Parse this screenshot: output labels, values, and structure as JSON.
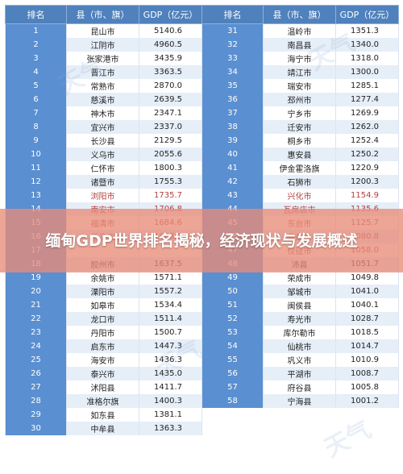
{
  "table": {
    "headers": {
      "rank": "排名",
      "county": "县（市、旗）",
      "gdp": "GDP（亿元）"
    },
    "left_rows": [
      {
        "rank": "1",
        "county": "昆山市",
        "gdp": "5140.6"
      },
      {
        "rank": "2",
        "county": "江阴市",
        "gdp": "4960.5"
      },
      {
        "rank": "3",
        "county": "张家港市",
        "gdp": "3435.9"
      },
      {
        "rank": "4",
        "county": "晋江市",
        "gdp": "3363.5"
      },
      {
        "rank": "5",
        "county": "常熟市",
        "gdp": "2870.0"
      },
      {
        "rank": "6",
        "county": "慈溪市",
        "gdp": "2639.5"
      },
      {
        "rank": "7",
        "county": "神木市",
        "gdp": "2347.1"
      },
      {
        "rank": "8",
        "county": "宜兴市",
        "gdp": "2337.0"
      },
      {
        "rank": "9",
        "county": "长沙县",
        "gdp": "2129.5"
      },
      {
        "rank": "10",
        "county": "义乌市",
        "gdp": "2055.6"
      },
      {
        "rank": "11",
        "county": "仁怀市",
        "gdp": "1800.3"
      },
      {
        "rank": "12",
        "county": "诸暨市",
        "gdp": "1755.3"
      },
      {
        "rank": "13",
        "county": "浏阳市",
        "gdp": "1735.7"
      },
      {
        "rank": "14",
        "county": "南安市",
        "gdp": "1706.8"
      },
      {
        "rank": "15",
        "county": "福清市",
        "gdp": "1684.6"
      },
      {
        "rank": "16",
        "county": "乐清市",
        "gdp": "1663.5"
      },
      {
        "rank": "17",
        "county": "",
        "gdp": ""
      },
      {
        "rank": "18",
        "county": "胶州市",
        "gdp": "1637.5"
      },
      {
        "rank": "19",
        "county": "余姚市",
        "gdp": "1571.1"
      },
      {
        "rank": "20",
        "county": "溧阳市",
        "gdp": "1557.2"
      },
      {
        "rank": "21",
        "county": "如皋市",
        "gdp": "1534.4"
      },
      {
        "rank": "22",
        "county": "龙口市",
        "gdp": "1511.4"
      },
      {
        "rank": "23",
        "county": "丹阳市",
        "gdp": "1500.7"
      },
      {
        "rank": "24",
        "county": "启东市",
        "gdp": "1447.3"
      },
      {
        "rank": "25",
        "county": "海安市",
        "gdp": "1436.3"
      },
      {
        "rank": "26",
        "county": "泰兴市",
        "gdp": "1435.0"
      },
      {
        "rank": "27",
        "county": "沭阳县",
        "gdp": "1411.7"
      },
      {
        "rank": "28",
        "county": "准格尔旗",
        "gdp": "1400.3"
      },
      {
        "rank": "29",
        "county": "如东县",
        "gdp": "1381.1"
      },
      {
        "rank": "30",
        "county": "中牟县",
        "gdp": "1363.3"
      }
    ],
    "right_rows": [
      {
        "rank": "31",
        "county": "温岭市",
        "gdp": "1351.3"
      },
      {
        "rank": "32",
        "county": "南昌县",
        "gdp": "1340.0"
      },
      {
        "rank": "33",
        "county": "海宁市",
        "gdp": "1318.0"
      },
      {
        "rank": "34",
        "county": "靖江市",
        "gdp": "1300.0"
      },
      {
        "rank": "35",
        "county": "瑞安市",
        "gdp": "1285.1"
      },
      {
        "rank": "36",
        "county": "邳州市",
        "gdp": "1277.4"
      },
      {
        "rank": "37",
        "county": "宁乡市",
        "gdp": "1269.9"
      },
      {
        "rank": "38",
        "county": "迁安市",
        "gdp": "1262.0"
      },
      {
        "rank": "39",
        "county": "桐乡市",
        "gdp": "1252.4"
      },
      {
        "rank": "40",
        "county": "惠安县",
        "gdp": "1250.2"
      },
      {
        "rank": "41",
        "county": "伊金霍洛旗",
        "gdp": "1220.9"
      },
      {
        "rank": "42",
        "county": "石狮市",
        "gdp": "1200.3"
      },
      {
        "rank": "43",
        "county": "兴化市",
        "gdp": "1154.9"
      },
      {
        "rank": "44",
        "county": "瓦房店市",
        "gdp": "1135.6"
      },
      {
        "rank": "45",
        "county": "东台市",
        "gdp": "1125.7"
      },
      {
        "rank": "46",
        "county": "高邮市",
        "gdp": "1080.8"
      },
      {
        "rank": "47",
        "county": "仪征市",
        "gdp": "1058.0"
      },
      {
        "rank": "48",
        "county": "沛县",
        "gdp": "1051.7"
      },
      {
        "rank": "49",
        "county": "荣成市",
        "gdp": "1049.8"
      },
      {
        "rank": "50",
        "county": "邹城市",
        "gdp": "1041.0"
      },
      {
        "rank": "51",
        "county": "闽侯县",
        "gdp": "1040.1"
      },
      {
        "rank": "52",
        "county": "寿光市",
        "gdp": "1028.7"
      },
      {
        "rank": "53",
        "county": "库尔勒市",
        "gdp": "1018.5"
      },
      {
        "rank": "54",
        "county": "仙桃市",
        "gdp": "1014.7"
      },
      {
        "rank": "55",
        "county": "巩义市",
        "gdp": "1010.9"
      },
      {
        "rank": "56",
        "county": "平湖市",
        "gdp": "1008.7"
      },
      {
        "rank": "57",
        "county": "府谷县",
        "gdp": "1005.8"
      },
      {
        "rank": "58",
        "county": "宁海县",
        "gdp": "1001.2"
      }
    ]
  },
  "banner": {
    "title": "缅甸GDP世界排名揭秘，经济现状与发展概述"
  },
  "watermark": {
    "text": "天气"
  },
  "colors": {
    "header_bg": "#4f81bd",
    "rank_bg": "#5a8fd1",
    "row_alt": "#e6eef8",
    "banner_bg": "#e88c78",
    "banner_text": "#ffffff"
  }
}
